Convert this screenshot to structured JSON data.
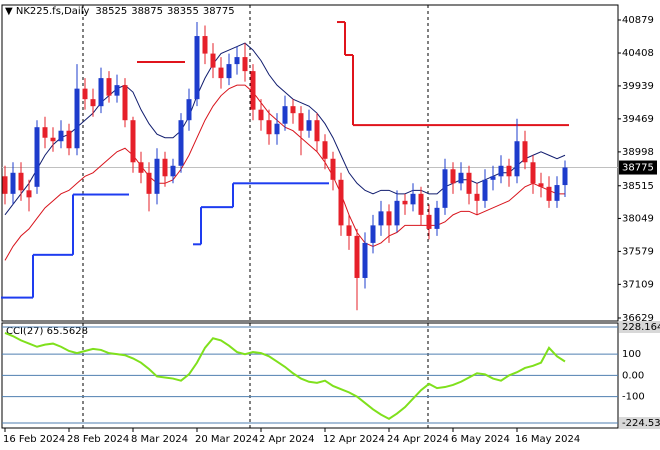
{
  "chart_data": [
    {
      "type": "candlestick",
      "title": "NK225.fs,Daily",
      "header_values": [
        38525,
        38875,
        38355,
        38775
      ],
      "categories": [
        "16 Feb 2024",
        null,
        null,
        null,
        null,
        null,
        null,
        null,
        "28 Feb 2024",
        null,
        null,
        null,
        null,
        null,
        null,
        null,
        "8 Mar 2024",
        null,
        null,
        null,
        null,
        null,
        null,
        null,
        "20 Mar 2024",
        null,
        null,
        null,
        null,
        null,
        null,
        null,
        "2 Apr 2024",
        null,
        null,
        null,
        null,
        null,
        null,
        null,
        "12 Apr 2024",
        null,
        null,
        null,
        null,
        null,
        null,
        null,
        "24 Apr 2024",
        null,
        null,
        null,
        null,
        null,
        null,
        null,
        "6 May 2024",
        null,
        null,
        null,
        null,
        null,
        null,
        null,
        "16 May 2024",
        null,
        null,
        null,
        null,
        null,
        null
      ],
      "open": [
        38650,
        38400,
        38700,
        38450,
        38500,
        39350,
        39200,
        39150,
        39300,
        39050,
        39900,
        39750,
        39650,
        40050,
        39800,
        39950,
        39450,
        38850,
        38700,
        38400,
        38900,
        38650,
        38800,
        39450,
        39750,
        40650,
        40400,
        40200,
        40050,
        40250,
        40350,
        40150,
        39600,
        39450,
        39250,
        39400,
        39650,
        39550,
        39300,
        39450,
        39150,
        38900,
        38600,
        37950,
        37800,
        37200,
        37700,
        37950,
        38150,
        37950,
        38300,
        38250,
        38400,
        38100,
        37900,
        38200,
        38750,
        38550,
        38700,
        38400,
        38300,
        38600,
        38650,
        38800,
        38650,
        39150,
        38850,
        38550,
        38500,
        38300,
        38525
      ],
      "high": [
        38800,
        38850,
        38850,
        38600,
        39450,
        39500,
        39350,
        39450,
        39400,
        40250,
        40050,
        39900,
        40200,
        40150,
        40100,
        40050,
        39500,
        39000,
        38850,
        39050,
        39000,
        38900,
        39550,
        39900,
        40850,
        40800,
        40550,
        40350,
        40400,
        40500,
        40550,
        40250,
        39750,
        39600,
        39550,
        39800,
        39750,
        39650,
        39600,
        39550,
        39250,
        39000,
        38700,
        38100,
        37900,
        37850,
        38100,
        38300,
        38250,
        38450,
        38400,
        38550,
        38500,
        38250,
        38300,
        38900,
        38850,
        38850,
        38800,
        38550,
        38750,
        38800,
        38950,
        38900,
        39470,
        39300,
        38950,
        38700,
        38650,
        38650,
        38875
      ],
      "low": [
        38250,
        38250,
        38300,
        38150,
        38400,
        39050,
        39000,
        39050,
        38950,
        38950,
        39600,
        39500,
        39550,
        39700,
        39700,
        39350,
        38700,
        38550,
        38150,
        38250,
        38500,
        38550,
        38700,
        39300,
        39650,
        40250,
        40050,
        39900,
        39950,
        40100,
        40000,
        39450,
        39300,
        39100,
        39100,
        39300,
        39400,
        38950,
        39200,
        39000,
        38750,
        38450,
        37800,
        37600,
        36740,
        37050,
        37550,
        37800,
        37700,
        37850,
        38100,
        38150,
        37950,
        37750,
        37800,
        38100,
        38400,
        38450,
        38250,
        38100,
        38200,
        38450,
        38550,
        38500,
        38550,
        38750,
        38400,
        38350,
        38200,
        38200,
        38355
      ],
      "close": [
        38400,
        38700,
        38450,
        38350,
        39350,
        39200,
        39150,
        39300,
        39050,
        39900,
        39750,
        39650,
        40050,
        39800,
        39950,
        39450,
        38850,
        38700,
        38400,
        38900,
        38650,
        38800,
        39450,
        39750,
        40650,
        40400,
        40200,
        40050,
        40250,
        40350,
        40150,
        39600,
        39450,
        39250,
        39400,
        39650,
        39550,
        39300,
        39450,
        39150,
        38900,
        38600,
        37950,
        37800,
        37200,
        37700,
        37950,
        38150,
        37950,
        38300,
        38250,
        38400,
        38100,
        37900,
        38200,
        38750,
        38550,
        38700,
        38400,
        38300,
        38600,
        38650,
        38800,
        38650,
        39150,
        38850,
        38550,
        38500,
        38300,
        38525,
        38775
      ],
      "up_color": "#1e3ccc",
      "down_color": "#e6202a",
      "lines": [
        {
          "color": "#101c6e",
          "values": [
            38100,
            38250,
            38400,
            38550,
            38750,
            38950,
            39100,
            39200,
            39250,
            39350,
            39450,
            39550,
            39700,
            39800,
            39900,
            39950,
            39850,
            39600,
            39400,
            39250,
            39200,
            39200,
            39300,
            39500,
            39800,
            40050,
            40250,
            40400,
            40450,
            40500,
            40550,
            40450,
            40300,
            40100,
            39950,
            39850,
            39750,
            39700,
            39650,
            39550,
            39400,
            39200,
            38950,
            38700,
            38550,
            38450,
            38400,
            38450,
            38450,
            38400,
            38400,
            38450,
            38450,
            38400,
            38400,
            38500,
            38550,
            38600,
            38600,
            38550,
            38600,
            38650,
            38700,
            38700,
            38800,
            38900,
            38950,
            39000,
            38950,
            38900,
            38950
          ]
        },
        {
          "color": "#d8141c",
          "values": [
            37450,
            37650,
            37800,
            37900,
            38050,
            38200,
            38300,
            38400,
            38450,
            38550,
            38650,
            38700,
            38800,
            38900,
            39000,
            39050,
            38950,
            38800,
            38650,
            38550,
            38550,
            38600,
            38750,
            38950,
            39200,
            39450,
            39650,
            39800,
            39900,
            39950,
            39950,
            39850,
            39700,
            39550,
            39450,
            39350,
            39300,
            39200,
            39100,
            39000,
            38850,
            38650,
            38400,
            38100,
            37850,
            37700,
            37650,
            37700,
            37800,
            37850,
            37950,
            37950,
            37950,
            37950,
            37950,
            38000,
            38100,
            38150,
            38150,
            38100,
            38150,
            38200,
            38250,
            38300,
            38400,
            38500,
            38550,
            38500,
            38450,
            38400,
            38400
          ]
        }
      ],
      "steps": [
        {
          "color": "#1e3cf0",
          "values": [
            36920,
            36920,
            36920,
            36920,
            37530,
            37530,
            37530,
            37530,
            37530,
            38390,
            38390,
            38390,
            38390,
            38390,
            38390,
            38390,
            null,
            null,
            null,
            null,
            null,
            null,
            null,
            null,
            37680,
            38210,
            38210,
            38210,
            38210,
            38550,
            38550,
            38550,
            38550,
            38550,
            38550,
            38550,
            38550,
            38550,
            38550,
            38550,
            38550,
            null,
            null,
            null,
            null,
            null,
            null,
            null,
            null,
            null,
            null,
            null,
            null,
            null,
            null,
            null,
            null,
            null,
            null,
            null,
            null,
            null,
            null,
            null,
            null,
            null,
            null,
            null,
            null,
            null,
            null
          ]
        },
        {
          "color": "#e0141c",
          "values": [
            null,
            null,
            null,
            null,
            null,
            null,
            null,
            null,
            null,
            null,
            null,
            null,
            null,
            null,
            null,
            null,
            null,
            40280,
            40280,
            40280,
            40280,
            40280,
            40280,
            null,
            null,
            null,
            null,
            null,
            null,
            null,
            null,
            null,
            null,
            null,
            null,
            null,
            null,
            null,
            null,
            null,
            null,
            null,
            40850,
            40380,
            39380,
            39380,
            39380,
            39380,
            39380,
            39380,
            39380,
            39380,
            39380,
            39380,
            39380,
            39380,
            39380,
            39380,
            39380,
            39380,
            39380,
            39380,
            39380,
            39380,
            39380,
            39380,
            39380,
            39380,
            39380,
            39380,
            39380
          ]
        }
      ],
      "last_price": 38775,
      "ylim": [
        36629,
        40879
      ],
      "yticks": [
        36629,
        37109,
        37579,
        38049,
        38515,
        38998,
        39469,
        39939,
        40408,
        40879
      ]
    },
    {
      "type": "line",
      "title": "CCI(27) 65.5628",
      "series": [
        {
          "color": "#7fe01c",
          "values": [
            200,
            185,
            165,
            150,
            135,
            145,
            150,
            135,
            115,
            105,
            115,
            125,
            120,
            105,
            100,
            95,
            80,
            60,
            30,
            -5,
            -10,
            -15,
            -25,
            5,
            60,
            130,
            175,
            165,
            140,
            110,
            100,
            110,
            105,
            90,
            65,
            40,
            10,
            -15,
            -30,
            -35,
            -25,
            -50,
            -65,
            -80,
            -100,
            -130,
            -160,
            -185,
            -205,
            -180,
            -150,
            -110,
            -70,
            -40,
            -60,
            -55,
            -45,
            -30,
            -10,
            10,
            5,
            -15,
            -25,
            0,
            15,
            35,
            45,
            60,
            130,
            90,
            65.5628
          ]
        }
      ],
      "ylim": [
        -224.5335,
        228.1643
      ],
      "yticks": [
        -224.5335,
        -100,
        {
          "value": 0,
          "label": "0.00"
        },
        100,
        228.1643
      ],
      "grid": true,
      "grid_color": "#4f7fb0"
    }
  ]
}
